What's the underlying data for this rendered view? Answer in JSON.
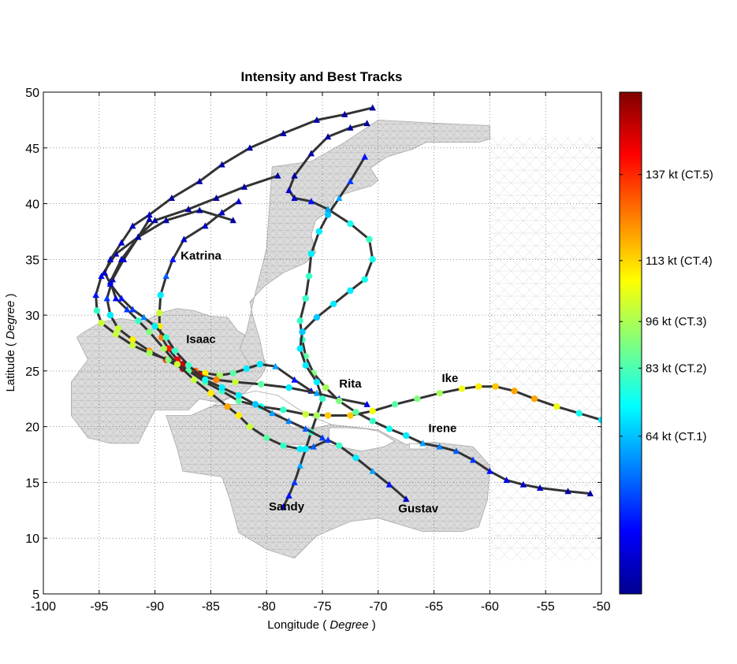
{
  "chart_data": {
    "type": "scatter",
    "title": "Intensity and Best Tracks",
    "xlabel_prefix": "Longitude ( ",
    "xlabel_unit": "Degree",
    "xlabel_suffix": " )",
    "ylabel_prefix": "Latitude ( ",
    "ylabel_unit": "Degree",
    "ylabel_suffix": " )",
    "xlim": [
      -100,
      -50
    ],
    "ylim": [
      5,
      50
    ],
    "xticks": [
      -100,
      -95,
      -90,
      -85,
      -80,
      -75,
      -70,
      -65,
      -60,
      -55,
      -50
    ],
    "yticks": [
      5,
      10,
      15,
      20,
      25,
      30,
      35,
      40,
      45,
      50
    ],
    "grid": true,
    "colorbar": {
      "colormap": "jet",
      "range_kt": [
        20,
        160
      ],
      "labels": [
        {
          "value": 64,
          "text": "64 kt (CT.1)"
        },
        {
          "value": 83,
          "text": "83 kt (CT.2)"
        },
        {
          "value": 96,
          "text": "96 kt (CT.3)"
        },
        {
          "value": 113,
          "text": "113 kt (CT.4)"
        },
        {
          "value": 137,
          "text": "137 kt (CT.5)"
        }
      ]
    },
    "series": [
      {
        "name": "Katrina",
        "label_at": [
          -87.7,
          35.0
        ],
        "points": [
          [
            -76.0,
            23.2,
            35
          ],
          [
            -77.5,
            24.2,
            40
          ],
          [
            -79.2,
            25.4,
            60
          ],
          [
            -80.6,
            25.6,
            70
          ],
          [
            -81.8,
            25.2,
            70
          ],
          [
            -83.0,
            24.8,
            85
          ],
          [
            -84.2,
            24.6,
            95
          ],
          [
            -85.5,
            24.8,
            110
          ],
          [
            -86.4,
            25.0,
            130
          ],
          [
            -87.0,
            25.2,
            150
          ],
          [
            -87.5,
            25.6,
            150
          ],
          [
            -88.0,
            26.0,
            145
          ],
          [
            -88.8,
            27.0,
            140
          ],
          [
            -89.4,
            28.0,
            125
          ],
          [
            -89.6,
            29.0,
            110
          ],
          [
            -89.6,
            30.2,
            100
          ],
          [
            -89.5,
            31.8,
            70
          ],
          [
            -89.0,
            33.5,
            50
          ],
          [
            -88.4,
            35.0,
            40
          ],
          [
            -87.4,
            36.8,
            30
          ],
          [
            -85.5,
            38.0,
            30
          ],
          [
            -84.0,
            39.2,
            30
          ],
          [
            -82.5,
            40.2,
            30
          ]
        ]
      },
      {
        "name": "Rita",
        "label_at": [
          -73.5,
          23.5
        ],
        "points": [
          [
            -71.0,
            22.0,
            35
          ],
          [
            -73.5,
            22.5,
            45
          ],
          [
            -75.5,
            23.0,
            60
          ],
          [
            -78.0,
            23.5,
            70
          ],
          [
            -80.5,
            23.8,
            85
          ],
          [
            -82.8,
            24.0,
            100
          ],
          [
            -84.5,
            24.2,
            125
          ],
          [
            -86.0,
            24.6,
            145
          ],
          [
            -87.5,
            25.2,
            150
          ],
          [
            -89.0,
            26.0,
            135
          ],
          [
            -90.5,
            26.8,
            120
          ],
          [
            -92.0,
            27.8,
            110
          ],
          [
            -93.3,
            28.8,
            100
          ],
          [
            -94.0,
            30.0,
            70
          ],
          [
            -94.3,
            31.5,
            45
          ],
          [
            -93.8,
            33.2,
            30
          ],
          [
            -92.8,
            35.0,
            30
          ],
          [
            -91.5,
            37.0,
            25
          ],
          [
            -90.5,
            38.6,
            25
          ]
        ]
      },
      {
        "name": "Ike",
        "label_at": [
          -64.3,
          24.0
        ],
        "points": [
          [
            -50.0,
            20.6,
            70
          ],
          [
            -52.0,
            21.2,
            75
          ],
          [
            -54.0,
            21.8,
            105
          ],
          [
            -56.0,
            22.5,
            120
          ],
          [
            -57.8,
            23.2,
            120
          ],
          [
            -59.5,
            23.6,
            115
          ],
          [
            -61.0,
            23.6,
            110
          ],
          [
            -62.5,
            23.4,
            105
          ],
          [
            -64.5,
            23.0,
            95
          ],
          [
            -66.5,
            22.5,
            90
          ],
          [
            -68.5,
            22.0,
            85
          ],
          [
            -70.5,
            21.4,
            105
          ],
          [
            -72.5,
            21.0,
            115
          ],
          [
            -74.5,
            21.0,
            115
          ],
          [
            -76.5,
            21.1,
            100
          ],
          [
            -78.5,
            21.5,
            80
          ],
          [
            -80.5,
            21.8,
            75
          ],
          [
            -82.5,
            22.3,
            85
          ],
          [
            -84.0,
            23.2,
            80
          ],
          [
            -85.5,
            24.0,
            85
          ],
          [
            -87.0,
            25.0,
            85
          ],
          [
            -88.8,
            26.0,
            90
          ],
          [
            -90.5,
            26.6,
            95
          ],
          [
            -92.0,
            27.3,
            100
          ],
          [
            -93.5,
            28.3,
            100
          ],
          [
            -94.8,
            29.3,
            100
          ],
          [
            -95.2,
            30.4,
            80
          ],
          [
            -95.3,
            31.8,
            40
          ],
          [
            -94.8,
            33.5,
            35
          ],
          [
            -93.5,
            35.5,
            30
          ],
          [
            -91.5,
            37.0,
            30
          ],
          [
            -89.0,
            38.5,
            25
          ],
          [
            -86.0,
            39.4,
            25
          ],
          [
            -83.0,
            38.5,
            25
          ]
        ]
      },
      {
        "name": "Gustav",
        "label_at": [
          -68.2,
          12.3
        ],
        "points": [
          [
            -67.5,
            13.5,
            30
          ],
          [
            -69.0,
            14.8,
            40
          ],
          [
            -70.5,
            16.0,
            60
          ],
          [
            -72.0,
            17.2,
            70
          ],
          [
            -73.5,
            18.3,
            80
          ],
          [
            -74.5,
            18.8,
            45
          ],
          [
            -75.8,
            18.2,
            50
          ],
          [
            -77.0,
            18.0,
            70
          ],
          [
            -78.5,
            18.3,
            80
          ],
          [
            -80.0,
            19.0,
            85
          ],
          [
            -81.5,
            20.0,
            100
          ],
          [
            -82.5,
            21.0,
            110
          ],
          [
            -83.5,
            21.8,
            120
          ],
          [
            -85.0,
            23.0,
            110
          ],
          [
            -86.5,
            24.2,
            100
          ],
          [
            -88.0,
            25.6,
            100
          ],
          [
            -89.2,
            27.0,
            95
          ],
          [
            -90.5,
            28.5,
            90
          ],
          [
            -91.5,
            29.5,
            80
          ],
          [
            -92.5,
            30.5,
            45
          ],
          [
            -93.5,
            31.5,
            35
          ],
          [
            -94.0,
            33.0,
            30
          ],
          [
            -93.0,
            35.0,
            30
          ],
          [
            -91.5,
            37.0,
            25
          ],
          [
            -90.0,
            38.5,
            25
          ],
          [
            -87.0,
            39.5,
            25
          ],
          [
            -84.5,
            40.5,
            25
          ],
          [
            -82.0,
            41.5,
            25
          ],
          [
            -79.0,
            42.5,
            25
          ]
        ]
      },
      {
        "name": "Irene",
        "label_at": [
          -65.5,
          19.5
        ],
        "points": [
          [
            -51.0,
            14.0,
            25
          ],
          [
            -53.0,
            14.2,
            25
          ],
          [
            -55.5,
            14.5,
            30
          ],
          [
            -57.0,
            14.8,
            30
          ],
          [
            -58.5,
            15.2,
            35
          ],
          [
            -60.0,
            16.0,
            40
          ],
          [
            -61.5,
            17.0,
            45
          ],
          [
            -63.0,
            17.8,
            50
          ],
          [
            -64.5,
            18.2,
            55
          ],
          [
            -66.0,
            18.5,
            60
          ],
          [
            -67.5,
            19.2,
            70
          ],
          [
            -69.0,
            19.8,
            75
          ],
          [
            -70.5,
            20.5,
            80
          ],
          [
            -72.0,
            21.3,
            85
          ],
          [
            -73.5,
            22.3,
            90
          ],
          [
            -74.7,
            23.5,
            95
          ],
          [
            -75.8,
            24.8,
            90
          ],
          [
            -76.5,
            26.3,
            85
          ],
          [
            -76.8,
            27.8,
            80
          ],
          [
            -77.0,
            29.5,
            80
          ],
          [
            -76.5,
            31.5,
            80
          ],
          [
            -76.2,
            33.5,
            80
          ],
          [
            -76.0,
            35.5,
            70
          ],
          [
            -75.3,
            37.5,
            70
          ],
          [
            -74.5,
            39.0,
            65
          ],
          [
            -73.5,
            40.5,
            60
          ],
          [
            -72.5,
            42.0,
            45
          ],
          [
            -71.2,
            44.2,
            40
          ]
        ]
      },
      {
        "name": "Sandy",
        "label_at": [
          -79.8,
          12.5
        ],
        "points": [
          [
            -78.5,
            12.8,
            35
          ],
          [
            -78.0,
            13.8,
            40
          ],
          [
            -77.5,
            15.0,
            45
          ],
          [
            -77.0,
            16.5,
            60
          ],
          [
            -76.5,
            18.0,
            70
          ],
          [
            -76.0,
            19.5,
            80
          ],
          [
            -75.5,
            21.0,
            95
          ],
          [
            -75.0,
            22.5,
            80
          ],
          [
            -75.5,
            24.0,
            70
          ],
          [
            -76.5,
            25.5,
            70
          ],
          [
            -77.0,
            27.0,
            70
          ],
          [
            -76.8,
            28.5,
            65
          ],
          [
            -75.5,
            29.8,
            65
          ],
          [
            -74.0,
            31.0,
            70
          ],
          [
            -72.5,
            32.2,
            70
          ],
          [
            -71.2,
            33.2,
            75
          ],
          [
            -70.5,
            35.0,
            75
          ],
          [
            -70.8,
            36.8,
            80
          ],
          [
            -72.5,
            38.2,
            75
          ],
          [
            -74.5,
            39.5,
            60
          ],
          [
            -76.0,
            40.2,
            40
          ],
          [
            -77.5,
            40.5,
            30
          ],
          [
            -78.0,
            41.2,
            30
          ],
          [
            -77.5,
            42.5,
            25
          ],
          [
            -76.0,
            44.5,
            25
          ],
          [
            -74.5,
            46.0,
            25
          ],
          [
            -72.5,
            46.8,
            25
          ],
          [
            -71.0,
            47.2,
            25
          ]
        ]
      },
      {
        "name": "Isaac",
        "label_at": [
          -87.2,
          27.5
        ],
        "points": [
          [
            -75.0,
            19.0,
            45
          ],
          [
            -76.5,
            19.8,
            50
          ],
          [
            -78.0,
            20.5,
            55
          ],
          [
            -79.5,
            21.2,
            60
          ],
          [
            -81.0,
            22.0,
            65
          ],
          [
            -82.5,
            22.8,
            70
          ],
          [
            -84.0,
            23.5,
            70
          ],
          [
            -85.5,
            24.2,
            75
          ],
          [
            -87.0,
            25.5,
            80
          ],
          [
            -88.2,
            26.8,
            80
          ],
          [
            -89.0,
            28.0,
            80
          ],
          [
            -90.0,
            29.0,
            70
          ],
          [
            -91.0,
            29.8,
            55
          ],
          [
            -92.0,
            30.5,
            45
          ],
          [
            -93.0,
            31.5,
            40
          ],
          [
            -94.0,
            32.8,
            35
          ],
          [
            -94.5,
            33.8,
            30
          ],
          [
            -94.0,
            35.0,
            30
          ],
          [
            -93.0,
            36.5,
            30
          ],
          [
            -92.0,
            38.0,
            30
          ],
          [
            -90.5,
            39.0,
            30
          ],
          [
            -88.5,
            40.5,
            25
          ],
          [
            -86.0,
            42.0,
            25
          ],
          [
            -84.0,
            43.5,
            25
          ],
          [
            -81.5,
            45.0,
            25
          ],
          [
            -78.5,
            46.3,
            25
          ],
          [
            -75.5,
            47.5,
            25
          ],
          [
            -73.0,
            48.0,
            25
          ],
          [
            -70.5,
            48.6,
            25
          ]
        ]
      }
    ]
  }
}
